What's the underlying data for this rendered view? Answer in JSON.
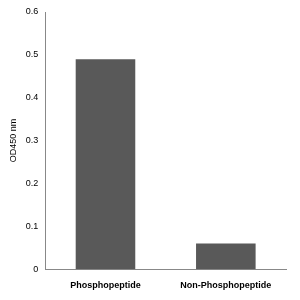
{
  "chart_data": {
    "type": "bar",
    "y_label": "OD450 nm",
    "categories": [
      "Phosphopeptide",
      "Non-Phosphopeptide"
    ],
    "values": [
      0.49,
      0.06
    ],
    "color": "#595959",
    "ylim": [
      0,
      0.6
    ],
    "yticks": [
      0,
      0.1,
      0.2,
      0.3,
      0.4,
      0.5,
      0.6
    ],
    "grid": false
  }
}
